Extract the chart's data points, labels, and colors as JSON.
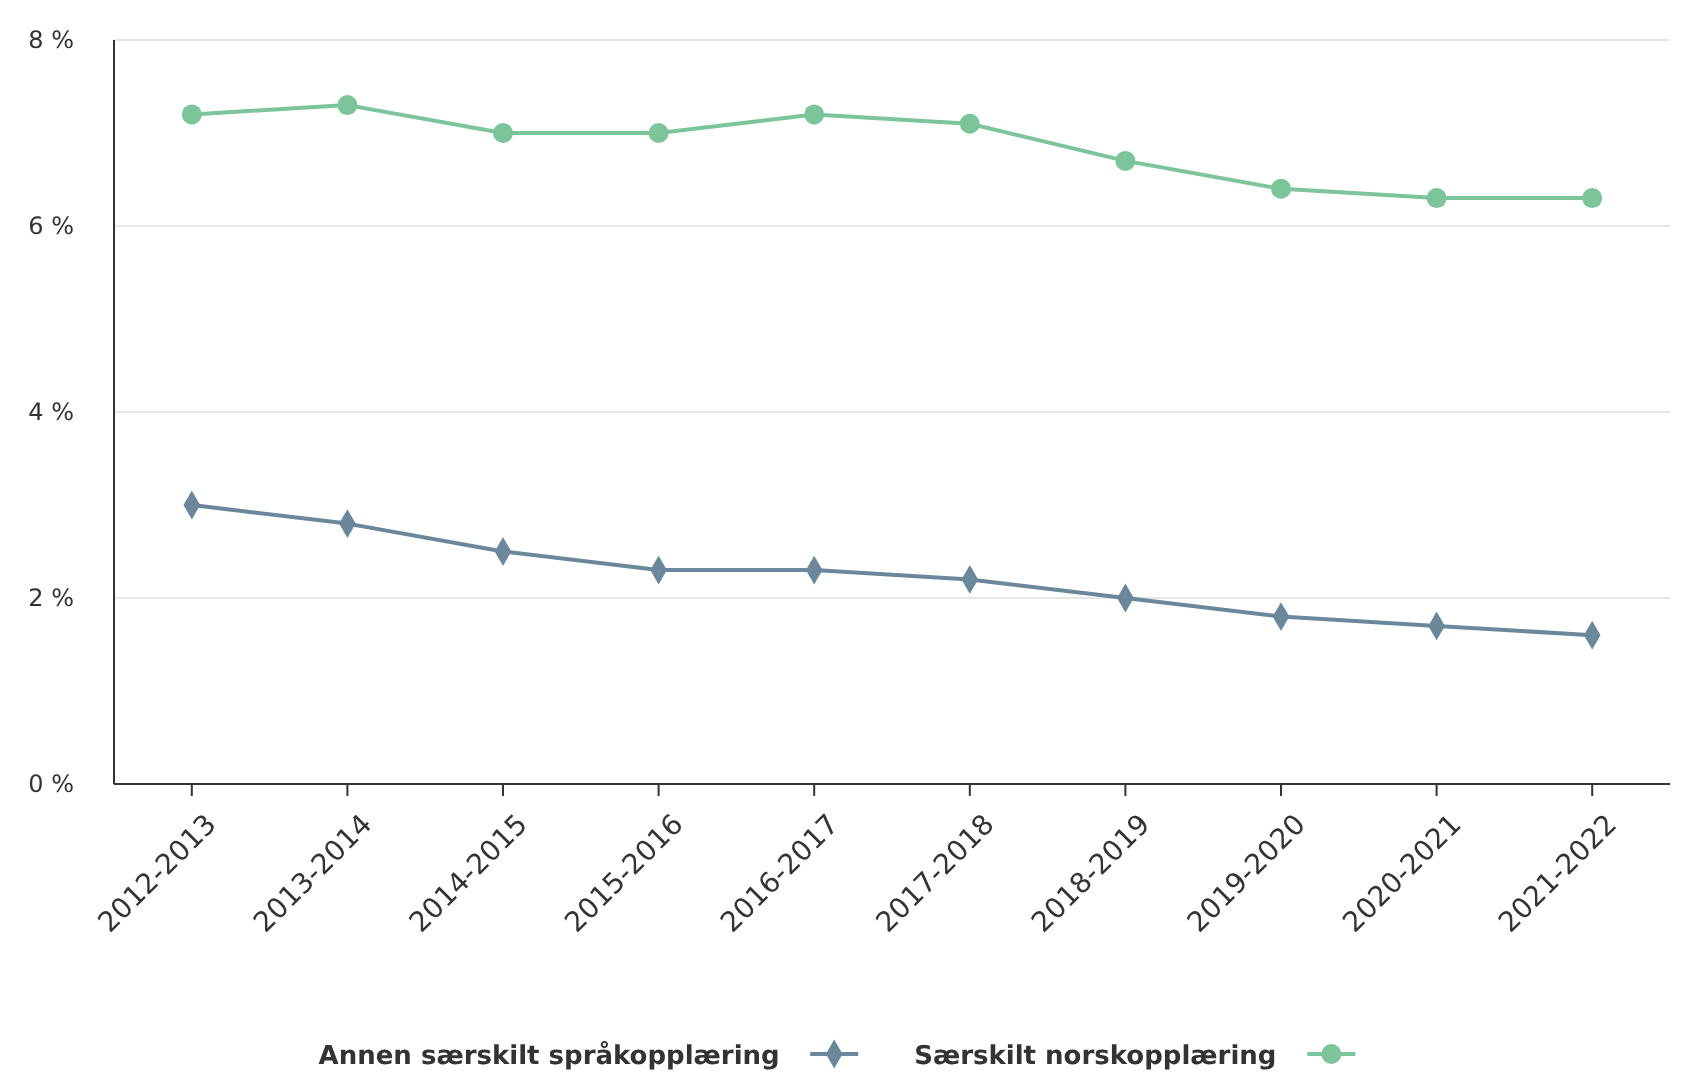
{
  "chart_data": {
    "type": "line",
    "categories": [
      "2012-2013",
      "2013-2014",
      "2014-2015",
      "2015-2016",
      "2016-2017",
      "2017-2018",
      "2018-2019",
      "2019-2020",
      "2020-2021",
      "2021-2022"
    ],
    "series": [
      {
        "name": "Annen særskilt språkopplæring",
        "color": "#6b879c",
        "marker": "diamond",
        "values": [
          3.0,
          2.8,
          2.5,
          2.3,
          2.3,
          2.2,
          2.0,
          1.8,
          1.7,
          1.6
        ]
      },
      {
        "name": "Særskilt norskopplæring",
        "color": "#7cc49a",
        "marker": "circle",
        "values": [
          7.2,
          7.3,
          7.0,
          7.0,
          7.2,
          7.1,
          6.7,
          6.4,
          6.3,
          6.3
        ]
      }
    ],
    "ylim": [
      0,
      8
    ],
    "yticks": [
      {
        "value": 0,
        "label": "0 %"
      },
      {
        "value": 2,
        "label": "2 %"
      },
      {
        "value": 4,
        "label": "4 %"
      },
      {
        "value": 6,
        "label": "6 %"
      },
      {
        "value": 8,
        "label": "8 %"
      }
    ],
    "grid": "y",
    "legend": "bottom",
    "line_style": "solid"
  }
}
